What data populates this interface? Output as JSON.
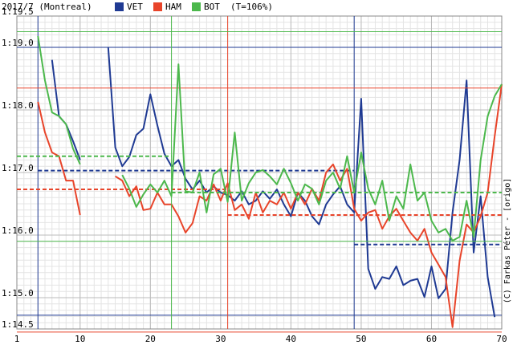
{
  "chart_data": {
    "type": "line",
    "title": "2017/7 (Montreal)",
    "legend_note": "(T=106%)",
    "credit": "(C) Farkas Péter - [origo]",
    "x": [
      1,
      2,
      3,
      4,
      5,
      6,
      7,
      8,
      9,
      10,
      11,
      12,
      13,
      14,
      15,
      16,
      17,
      18,
      19,
      20,
      21,
      22,
      23,
      24,
      25,
      26,
      27,
      28,
      29,
      30,
      31,
      32,
      33,
      34,
      35,
      36,
      37,
      38,
      39,
      40,
      41,
      42,
      43,
      44,
      45,
      46,
      47,
      48,
      49,
      50,
      51,
      52,
      53,
      54,
      55,
      56,
      57,
      58,
      59,
      60,
      61,
      62,
      63,
      64,
      65,
      66,
      67,
      68,
      69,
      70
    ],
    "xlim": [
      1,
      70
    ],
    "xticks": [
      1,
      10,
      20,
      30,
      40,
      50,
      60,
      70
    ],
    "ylim": [
      74.5,
      79.5
    ],
    "yticks": [
      {
        "value": 74.5,
        "label": "1:14.5"
      },
      {
        "value": 75,
        "label": "1:15.0"
      },
      {
        "value": 76,
        "label": "1:16.0"
      },
      {
        "value": 77,
        "label": "1:17.0"
      },
      {
        "value": 78,
        "label": "1:18.0"
      },
      {
        "value": 79,
        "label": "1:19.0"
      },
      {
        "value": 79.5,
        "label": "1:19.5"
      }
    ],
    "grid": true,
    "series": [
      {
        "name": "VET",
        "color": "#1f3a93",
        "values": [
          null,
          null,
          null,
          null,
          null,
          78.8,
          77.9,
          77.77,
          77.5,
          77.2,
          null,
          null,
          null,
          79.0,
          77.4,
          77.1,
          77.25,
          77.6,
          77.7,
          78.25,
          77.75,
          77.3,
          77.1,
          77.2,
          76.9,
          76.73,
          76.87,
          76.68,
          76.78,
          76.68,
          76.64,
          76.55,
          76.7,
          76.49,
          76.55,
          76.7,
          76.58,
          76.73,
          76.49,
          76.3,
          76.68,
          76.55,
          76.3,
          76.17,
          76.49,
          76.65,
          76.78,
          76.49,
          76.36,
          78.18,
          75.46,
          75.14,
          75.33,
          75.3,
          75.5,
          75.2,
          75.27,
          75.3,
          75.01,
          75.5,
          74.99,
          75.14,
          76.36,
          77.2,
          78.47,
          75.72,
          76.62,
          75.33,
          74.69,
          null
        ],
        "pit_laps": [
          4,
          49
        ],
        "hlines": [
          79.0,
          74.72
        ],
        "stints": [
          {
            "from": 4,
            "to": 49,
            "value": 77.03
          },
          {
            "from": 49,
            "to": 70,
            "value": 75.85
          }
        ]
      },
      {
        "name": "HAM",
        "color": "#e8442a",
        "values": [
          null,
          null,
          null,
          78.13,
          77.64,
          77.32,
          77.26,
          76.87,
          76.87,
          76.32,
          null,
          null,
          null,
          null,
          76.94,
          76.87,
          76.62,
          76.78,
          76.4,
          76.42,
          76.68,
          76.49,
          76.49,
          76.3,
          76.04,
          76.19,
          76.62,
          76.55,
          76.81,
          76.55,
          76.83,
          76.4,
          76.49,
          76.26,
          76.68,
          76.36,
          76.55,
          76.49,
          76.68,
          76.42,
          76.68,
          76.49,
          76.74,
          76.55,
          77.0,
          77.13,
          76.87,
          77.06,
          76.42,
          76.23,
          76.36,
          76.4,
          76.1,
          76.3,
          76.42,
          76.23,
          76.04,
          75.91,
          76.1,
          75.72,
          75.53,
          75.33,
          74.53,
          75.59,
          76.17,
          76.04,
          76.3,
          76.68,
          77.58,
          78.41
        ],
        "pit_laps": [
          31
        ],
        "hlines": [
          78.35,
          74.45
        ],
        "stints": [
          {
            "from": 1,
            "to": 31,
            "value": 76.73
          },
          {
            "from": 31,
            "to": 70,
            "value": 76.32
          }
        ]
      },
      {
        "name": "BOT",
        "color": "#4cb84c",
        "values": [
          null,
          null,
          null,
          79.18,
          78.47,
          77.96,
          77.9,
          77.77,
          77.38,
          77.13,
          null,
          null,
          null,
          null,
          null,
          76.96,
          76.74,
          76.45,
          76.65,
          76.81,
          76.68,
          76.87,
          76.62,
          78.73,
          76.7,
          76.68,
          77.0,
          76.36,
          76.97,
          77.06,
          76.53,
          77.64,
          76.55,
          76.83,
          77.0,
          77.04,
          76.94,
          76.81,
          77.06,
          76.83,
          76.55,
          76.81,
          76.74,
          76.49,
          76.87,
          77.0,
          76.74,
          77.26,
          76.68,
          77.32,
          76.74,
          76.49,
          76.87,
          76.23,
          76.62,
          76.42,
          77.13,
          76.55,
          76.68,
          76.23,
          76.04,
          76.1,
          75.91,
          75.97,
          76.55,
          75.97,
          77.2,
          77.9,
          78.22,
          78.41
        ],
        "pit_laps": [
          23
        ],
        "hlines": [
          79.25,
          75.9
        ],
        "stints": [
          {
            "from": 1,
            "to": 23,
            "value": 77.26
          },
          {
            "from": 23,
            "to": 70,
            "value": 76.68
          }
        ]
      }
    ]
  }
}
